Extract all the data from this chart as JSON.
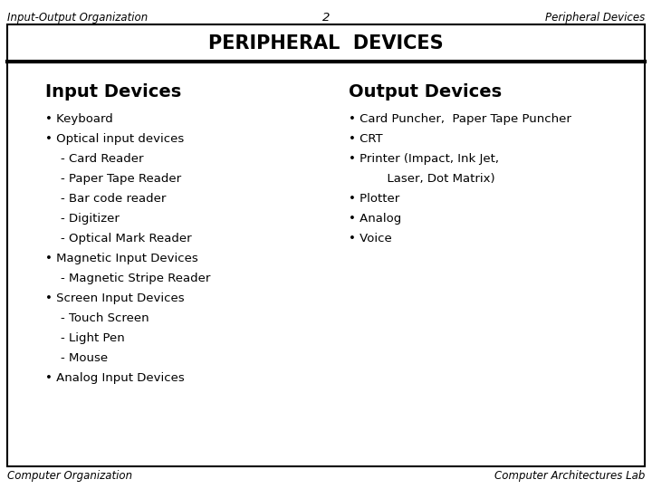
{
  "header_left": "Input-Output Organization",
  "header_center": "2",
  "header_right": "Peripheral Devices",
  "title": "PERIPHERAL  DEVICES",
  "section_left": "Input Devices",
  "section_right": "Output Devices",
  "left_items": [
    "• Keyboard",
    "• Optical input devices",
    "    - Card Reader",
    "    - Paper Tape Reader",
    "    - Bar code reader",
    "    - Digitizer",
    "    - Optical Mark Reader",
    "• Magnetic Input Devices",
    "    - Magnetic Stripe Reader",
    "• Screen Input Devices",
    "    - Touch Screen",
    "    - Light Pen",
    "    - Mouse",
    "• Analog Input Devices"
  ],
  "right_items": [
    "• Card Puncher,  Paper Tape Puncher",
    "• CRT",
    "• Printer (Impact, Ink Jet,",
    "          Laser, Dot Matrix)",
    "• Plotter",
    "• Analog",
    "• Voice"
  ],
  "footer_left": "Computer Organization",
  "footer_right": "Computer Architectures Lab",
  "bg_color": "#ffffff",
  "border_color": "#000000",
  "header_font_size": 8.5,
  "title_font_size": 15,
  "section_font_size": 14,
  "body_font_size": 9.5,
  "footer_font_size": 8.5
}
